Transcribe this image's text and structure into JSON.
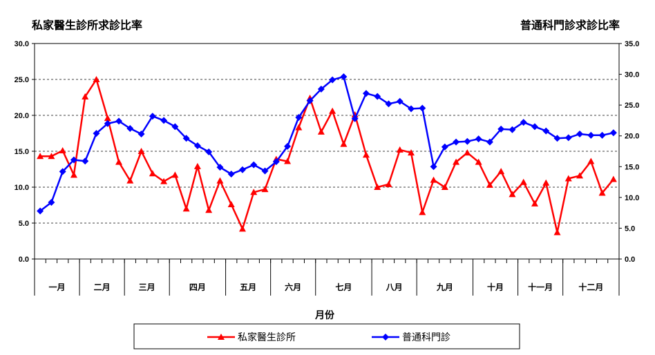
{
  "chart_data": {
    "type": "line",
    "title_left": "私家醫生診所求診比率",
    "title_right": "普通科門診求診比率",
    "xlabel": "月份",
    "ylim_left": [
      0,
      30
    ],
    "ylim_right": [
      0,
      35
    ],
    "yticks_left": [
      "0.0",
      "5.0",
      "10.0",
      "15.0",
      "20.0",
      "25.0",
      "30.0"
    ],
    "yticks_right": [
      "0.0",
      "5.0",
      "10.0",
      "15.0",
      "20.0",
      "25.0",
      "30.0",
      "35.0"
    ],
    "grid": "horizontal dashed",
    "legend_position": "bottom",
    "months": [
      {
        "label": "一月",
        "points": 4
      },
      {
        "label": "二月",
        "points": 4
      },
      {
        "label": "三月",
        "points": 4
      },
      {
        "label": "四月",
        "points": 5
      },
      {
        "label": "五月",
        "points": 4
      },
      {
        "label": "六月",
        "points": 4
      },
      {
        "label": "七月",
        "points": 5
      },
      {
        "label": "八月",
        "points": 4
      },
      {
        "label": "九月",
        "points": 5
      },
      {
        "label": "十月",
        "points": 4
      },
      {
        "label": "十一月",
        "points": 4
      },
      {
        "label": "十二月",
        "points": 5
      }
    ],
    "series": [
      {
        "name": "私家醫生診所",
        "axis": "left",
        "color": "#ff0000",
        "marker": "triangle",
        "values": [
          14.3,
          14.3,
          15.1,
          11.7,
          22.6,
          25.0,
          19.6,
          13.5,
          10.9,
          15.0,
          11.9,
          10.8,
          11.7,
          7.0,
          12.9,
          6.8,
          10.9,
          7.6,
          4.2,
          9.3,
          9.7,
          13.9,
          13.6,
          18.3,
          22.4,
          17.7,
          20.6,
          16.0,
          20.1,
          14.5,
          10.0,
          10.4,
          15.2,
          14.8,
          6.5,
          11.0,
          10.0,
          13.5,
          14.8,
          13.5,
          10.3,
          12.2,
          9.0,
          10.7,
          7.7,
          10.6,
          3.7,
          11.2,
          11.6,
          13.6,
          9.2,
          11.1
        ]
      },
      {
        "name": "普通科門診",
        "axis": "right",
        "color": "#0000ff",
        "marker": "diamond",
        "values": [
          7.8,
          9.2,
          14.2,
          16.1,
          15.9,
          20.4,
          22.0,
          22.4,
          21.2,
          20.3,
          23.2,
          22.5,
          21.5,
          19.6,
          18.4,
          17.4,
          14.9,
          13.8,
          14.5,
          15.3,
          14.3,
          15.8,
          18.3,
          23.0,
          25.7,
          27.6,
          29.1,
          29.6,
          22.8,
          26.9,
          26.4,
          25.2,
          25.6,
          24.4,
          24.5,
          15.0,
          18.2,
          19.0,
          19.1,
          19.5,
          19.0,
          21.1,
          21.0,
          22.2,
          21.5,
          20.8,
          19.6,
          19.7,
          20.3,
          20.1,
          20.1,
          20.5
        ]
      }
    ]
  }
}
